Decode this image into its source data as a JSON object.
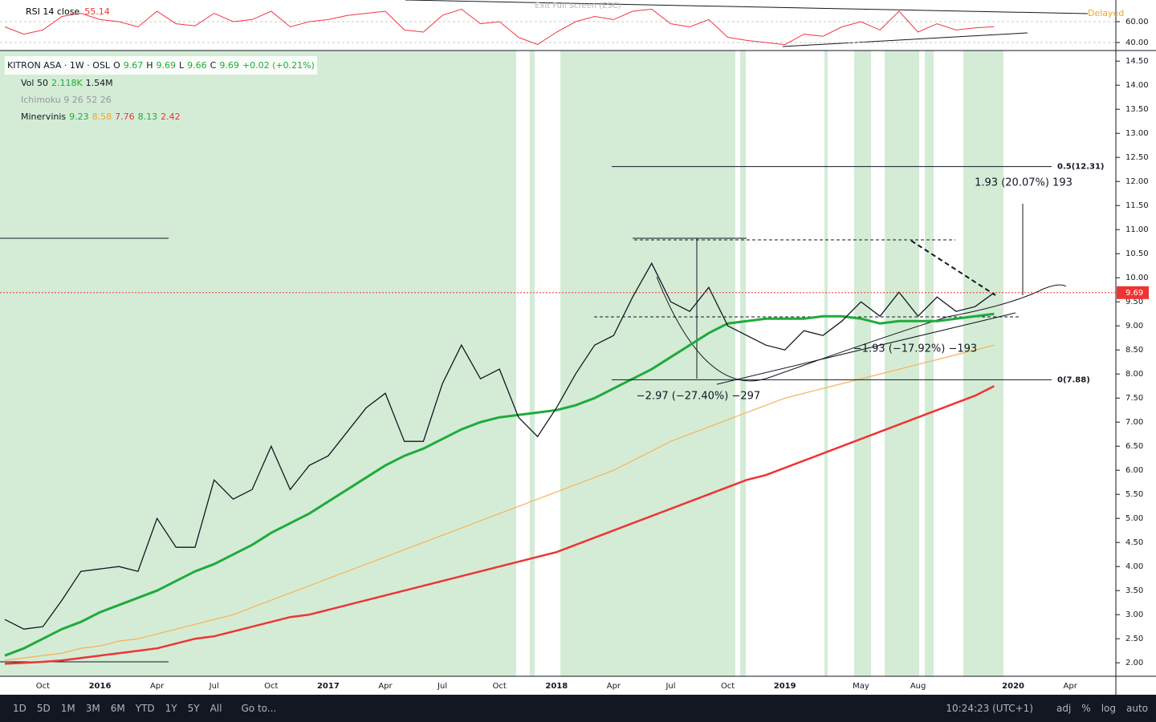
{
  "top_bar": {
    "exit": "Exit Full Screen (ESC)",
    "delayed": "Delayed"
  },
  "legend": {
    "symbol": "KITRON ASA · 1W · OSL",
    "o_key": "O",
    "o": "9.67",
    "h_key": "H",
    "h": "9.69",
    "l_key": "L",
    "l": "9.66",
    "c_key": "C",
    "c": "9.69",
    "change": "+0.02 (+0.21%)",
    "vol_name": "Vol 50",
    "vol_a": "2.118K",
    "vol_b": "1.54M",
    "ichimoku": "Ichimoku 9 26 52 26",
    "minervinis": "Minervinis",
    "m_values": [
      "9.23",
      "8.58",
      "7.76",
      "8.13",
      "2.42"
    ]
  },
  "chart_data": [
    {
      "type": "line",
      "categories": [
        null,
        null,
        "Oct",
        null,
        null,
        "2016",
        null,
        null,
        "Apr",
        null,
        null,
        "Jul",
        null,
        null,
        "Oct",
        null,
        null,
        "2017",
        null,
        null,
        "Apr",
        null,
        null,
        "Jul",
        null,
        null,
        "Oct",
        null,
        null,
        "2018",
        null,
        null,
        "Apr",
        null,
        null,
        "Jul",
        null,
        null,
        "Oct",
        null,
        null,
        "2019",
        null,
        null,
        null,
        "May",
        null,
        null,
        "Aug",
        null,
        null,
        null,
        null,
        "2020",
        null,
        null,
        "Apr"
      ],
      "series": [
        {
          "color": "#ef3434",
          "values": [
            1.98,
            2.0,
            2.02,
            2.05,
            2.1,
            2.15,
            2.2,
            2.25,
            2.3,
            2.4,
            2.5,
            2.55,
            2.65,
            2.75,
            2.85,
            2.95,
            3.0,
            3.1,
            3.2,
            3.3,
            3.4,
            3.5,
            3.6,
            3.7,
            3.8,
            3.9,
            4.0,
            4.1,
            4.2,
            4.3,
            4.45,
            4.6,
            4.75,
            4.9,
            5.05,
            5.2,
            5.35,
            5.5,
            5.65,
            5.8,
            5.9,
            6.05,
            6.2,
            6.35,
            6.5,
            6.65,
            6.8,
            6.95,
            7.1,
            7.25,
            7.4,
            7.55,
            7.75,
            null,
            null,
            null,
            null
          ]
        },
        {
          "color": "#f5b461",
          "values": [
            2.05,
            2.1,
            2.15,
            2.2,
            2.3,
            2.35,
            2.45,
            2.5,
            2.6,
            2.7,
            2.8,
            2.9,
            3.0,
            3.15,
            3.3,
            3.45,
            3.6,
            3.75,
            3.9,
            4.05,
            4.2,
            4.35,
            4.5,
            4.65,
            4.8,
            4.95,
            5.1,
            5.25,
            5.4,
            5.55,
            5.7,
            5.85,
            6.0,
            6.2,
            6.4,
            6.6,
            6.75,
            6.9,
            7.05,
            7.2,
            7.35,
            7.5,
            7.6,
            7.7,
            7.8,
            7.9,
            8.0,
            8.1,
            8.2,
            8.3,
            8.4,
            8.5,
            8.6,
            null,
            null,
            null,
            null
          ]
        },
        {
          "color": "#1fab3c",
          "values": [
            2.15,
            2.3,
            2.5,
            2.7,
            2.85,
            3.05,
            3.2,
            3.35,
            3.5,
            3.7,
            3.9,
            4.05,
            4.25,
            4.45,
            4.7,
            4.9,
            5.1,
            5.35,
            5.6,
            5.85,
            6.1,
            6.3,
            6.45,
            6.65,
            6.85,
            7.0,
            7.1,
            7.15,
            7.2,
            7.25,
            7.35,
            7.5,
            7.7,
            7.9,
            8.1,
            8.35,
            8.6,
            8.85,
            9.05,
            9.1,
            9.15,
            9.15,
            9.15,
            9.2,
            9.2,
            9.15,
            9.05,
            9.1,
            9.1,
            9.1,
            9.15,
            9.2,
            9.25,
            null,
            null,
            null,
            null
          ]
        },
        {
          "color": "#131722",
          "values": [
            2.9,
            2.7,
            2.75,
            3.3,
            3.9,
            3.95,
            4.0,
            3.9,
            5.0,
            4.4,
            4.4,
            5.8,
            5.4,
            5.6,
            6.5,
            5.6,
            6.1,
            6.3,
            6.8,
            7.3,
            7.6,
            6.6,
            6.6,
            7.8,
            8.6,
            7.9,
            8.1,
            7.1,
            6.7,
            7.3,
            8.0,
            8.6,
            8.8,
            9.6,
            10.3,
            9.5,
            9.3,
            9.8,
            9.0,
            8.8,
            8.6,
            8.5,
            8.9,
            8.8,
            9.1,
            9.5,
            9.2,
            9.7,
            9.2,
            9.6,
            9.3,
            9.4,
            9.69,
            null,
            null,
            null,
            null
          ]
        }
      ],
      "ylim": [
        1.72,
        14.72
      ],
      "yticks": [
        {
          "value": 2,
          "label": "2.00"
        },
        {
          "value": 2.5,
          "label": "2.50"
        },
        {
          "value": 3,
          "label": "3.00"
        },
        {
          "value": 3.5,
          "label": "3.50"
        },
        {
          "value": 4,
          "label": "4.00"
        },
        {
          "value": 4.5,
          "label": "4.50"
        },
        {
          "value": 5,
          "label": "5.00"
        },
        {
          "value": 5.5,
          "label": "5.50"
        },
        {
          "value": 6,
          "label": "6.00"
        },
        {
          "value": 6.5,
          "label": "6.50"
        },
        {
          "value": 7,
          "label": "7.00"
        },
        {
          "value": 7.5,
          "label": "7.50"
        },
        {
          "value": 8,
          "label": "8.00"
        },
        {
          "value": 8.5,
          "label": "8.50"
        },
        {
          "value": 9,
          "label": "9.00"
        },
        {
          "value": 9.5,
          "label": "9.50"
        },
        {
          "value": 10,
          "label": "10.00"
        },
        {
          "value": 10.5,
          "label": "10.50"
        },
        {
          "value": 11,
          "label": "11.00"
        },
        {
          "value": 11.5,
          "label": "11.50"
        },
        {
          "value": 12,
          "label": "12.00"
        },
        {
          "value": 12.5,
          "label": "12.50"
        },
        {
          "value": 13,
          "label": "13.00"
        },
        {
          "value": 13.5,
          "label": "13.50"
        },
        {
          "value": 14,
          "label": "14.00"
        },
        {
          "value": 14.5,
          "label": "14.50"
        }
      ],
      "price_line": {
        "value": 9.69,
        "label": "9.69"
      },
      "levels": [
        {
          "value": 12.31,
          "label": "0.5(12.31)"
        },
        {
          "value": 7.88,
          "label": "0(7.88)"
        }
      ],
      "annotations": [
        "1.93 (20.07%) 193",
        "−2.97 (−27.40%) −297",
        "−1.93 (−17.92%) −193"
      ]
    },
    {
      "type": "line",
      "title": "RSI 14 close",
      "last": "55.14",
      "color": "#f23645",
      "values": [
        55,
        48,
        52,
        65,
        68,
        62,
        60,
        55,
        70,
        58,
        56,
        68,
        60,
        62,
        70,
        55,
        60,
        62,
        66,
        68,
        70,
        52,
        50,
        66,
        72,
        58,
        60,
        45,
        38,
        50,
        60,
        65,
        62,
        70,
        72,
        58,
        55,
        62,
        45,
        42,
        40,
        38,
        48,
        46,
        55,
        60,
        52,
        70,
        50,
        58,
        52,
        54,
        55.14
      ],
      "ylim": [
        32.3,
        80.8
      ],
      "yticks": [
        {
          "value": 60,
          "label": "60.00"
        },
        {
          "value": 40,
          "label": "40.00"
        }
      ]
    }
  ],
  "bottom_bar": {
    "ranges": [
      "1D",
      "5D",
      "1M",
      "3M",
      "6M",
      "YTD",
      "1Y",
      "5Y",
      "All"
    ],
    "goto": "Go to...",
    "time": "10:24:23 (UTC+1)",
    "options": [
      "adj",
      "%",
      "log",
      "auto"
    ]
  }
}
